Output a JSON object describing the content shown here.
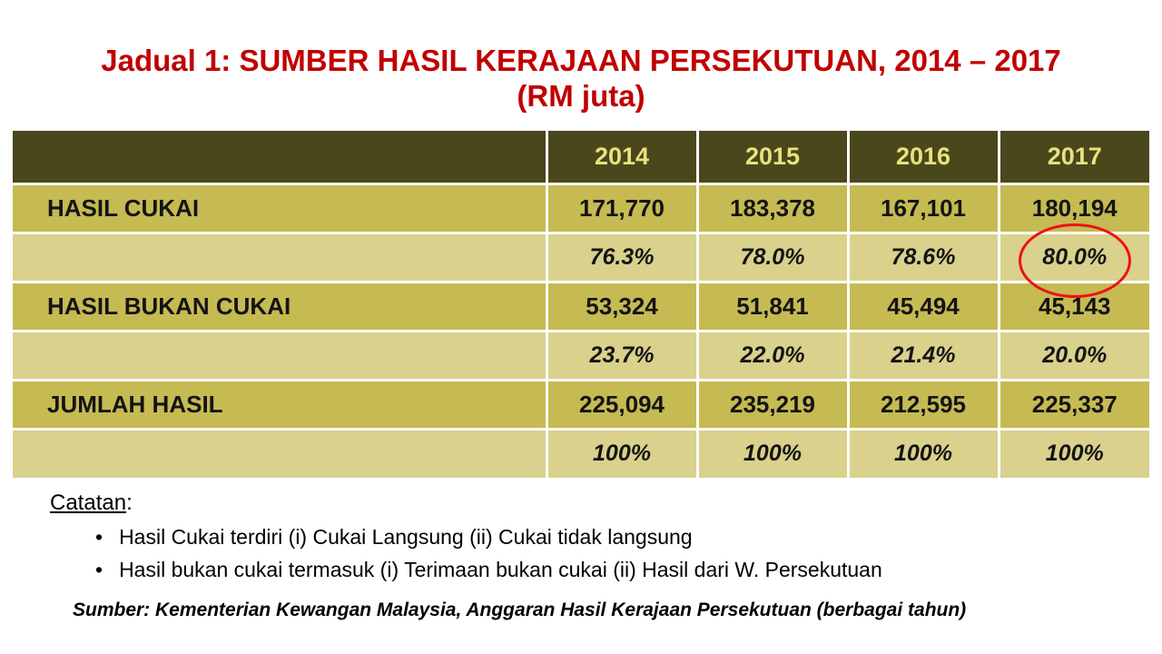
{
  "slide": {
    "title_line1": "Jadual 1: SUMBER HASIL KERAJAAN PERSEKUTUAN, 2014 – 2017",
    "title_line2": "(RM juta)"
  },
  "table": {
    "year_headers": [
      "2014",
      "2015",
      "2016",
      "2017"
    ],
    "rows": [
      {
        "label": "HASIL CUKAI",
        "type": "value",
        "values": [
          "171,770",
          "183,378",
          "167,101",
          "180,194"
        ]
      },
      {
        "label": "",
        "type": "percent",
        "values": [
          "76.3%",
          "78.0%",
          "78.6%",
          "80.0%"
        ]
      },
      {
        "label": "HASIL BUKAN CUKAI",
        "type": "value",
        "values": [
          "53,324",
          "51,841",
          "45,494",
          "45,143"
        ]
      },
      {
        "label": "",
        "type": "percent",
        "values": [
          "23.7%",
          "22.0%",
          "21.4%",
          "20.0%"
        ]
      },
      {
        "label": "JUMLAH HASIL",
        "type": "value",
        "values": [
          "225,094",
          "235,219",
          "212,595",
          "225,337"
        ]
      },
      {
        "label": "",
        "type": "percent",
        "values": [
          "100%",
          "100%",
          "100%",
          "100%"
        ]
      }
    ]
  },
  "annotation": {
    "circled_value": "80.0%",
    "circled_row": 1,
    "circled_column": "2017"
  },
  "notes": {
    "heading": "Catatan",
    "colon": ":",
    "bullets": [
      "Hasil Cukai terdiri (i) Cukai Langsung (ii) Cukai tidak langsung",
      "Hasil bukan cukai termasuk (i) Terimaan bukan cukai (ii) Hasil dari W. Persekutuan"
    ]
  },
  "source": "Sumber: Kementerian Kewangan Malaysia, Anggaran Hasil Kerajaan Persekutuan (berbagai tahun)",
  "colors": {
    "title": "#C00000",
    "header_bg": "#4a471c",
    "header_text": "#e8e17e",
    "row_value_bg": "#c6ba52",
    "row_percent_bg": "#d9d18c",
    "annotation": "#ee1111"
  }
}
